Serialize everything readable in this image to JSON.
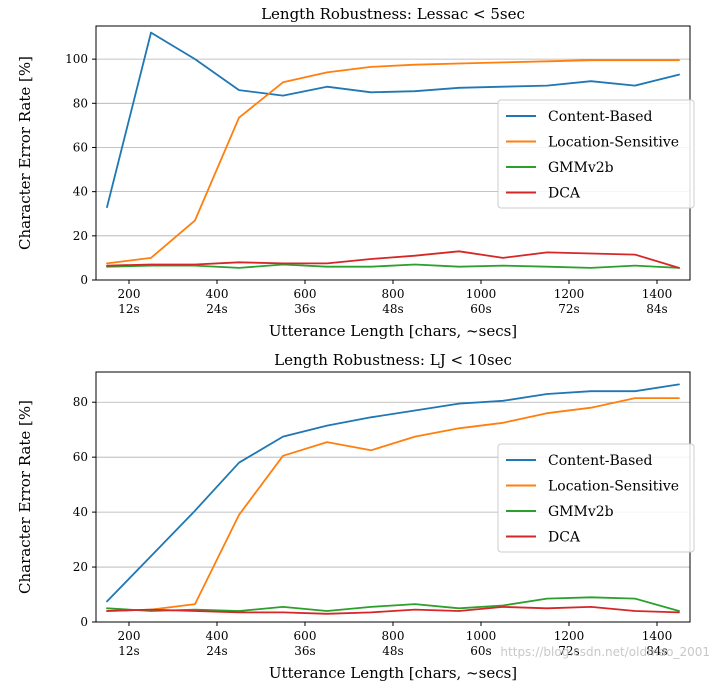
{
  "colors": {
    "Content-Based": "#1f77b4",
    "Location-Sensitive": "#ff7f0e",
    "GMMv2b": "#2ca02c",
    "DCA": "#d62728"
  },
  "watermark": "https://blog.csdn.net/oldmao_2001",
  "chart_data": [
    {
      "type": "line",
      "title": "Length Robustness: Lessac < 5sec",
      "xlabel": "Utterance Length [chars, ~secs]",
      "ylabel": "Character Error Rate [%]",
      "xlim": [
        125,
        1475
      ],
      "ylim": [
        0,
        115
      ],
      "yticks": [
        0,
        20,
        40,
        60,
        80,
        100
      ],
      "xticks": [
        {
          "value": 200,
          "label": "200",
          "sublabel": "12s"
        },
        {
          "value": 400,
          "label": "400",
          "sublabel": "24s"
        },
        {
          "value": 600,
          "label": "600",
          "sublabel": "36s"
        },
        {
          "value": 800,
          "label": "800",
          "sublabel": "48s"
        },
        {
          "value": 1000,
          "label": "1000",
          "sublabel": "60s"
        },
        {
          "value": 1200,
          "label": "1200",
          "sublabel": "72s"
        },
        {
          "value": 1400,
          "label": "1400",
          "sublabel": "84s"
        }
      ],
      "grid": "y",
      "legend": "center-right",
      "x": [
        150,
        250,
        350,
        450,
        550,
        650,
        750,
        850,
        950,
        1050,
        1150,
        1250,
        1350,
        1450
      ],
      "series": [
        {
          "name": "Content-Based",
          "values": [
            33,
            112,
            100,
            86,
            83.5,
            87.5,
            85,
            85.5,
            87,
            87.5,
            88,
            90,
            88,
            93
          ]
        },
        {
          "name": "Location-Sensitive",
          "values": [
            7.5,
            10,
            27,
            73.5,
            89.5,
            94,
            96.5,
            97.5,
            98,
            98.5,
            99,
            99.5,
            99.5,
            99.5
          ]
        },
        {
          "name": "GMMv2b",
          "values": [
            6,
            6.5,
            6.5,
            5.5,
            7,
            6,
            6,
            7,
            6,
            6.5,
            6,
            5.5,
            6.5,
            5.5
          ]
        },
        {
          "name": "DCA",
          "values": [
            6.5,
            7,
            7,
            8,
            7.5,
            7.5,
            9.5,
            11,
            13,
            10,
            12.5,
            12,
            11.5,
            5.5
          ]
        }
      ]
    },
    {
      "type": "line",
      "title": "Length Robustness: LJ < 10sec",
      "xlabel": "Utterance Length [chars, ~secs]",
      "ylabel": "Character Error Rate [%]",
      "xlim": [
        125,
        1475
      ],
      "ylim": [
        0,
        91
      ],
      "yticks": [
        0,
        20,
        40,
        60,
        80
      ],
      "xticks": [
        {
          "value": 200,
          "label": "200",
          "sublabel": "12s"
        },
        {
          "value": 400,
          "label": "400",
          "sublabel": "24s"
        },
        {
          "value": 600,
          "label": "600",
          "sublabel": "36s"
        },
        {
          "value": 800,
          "label": "800",
          "sublabel": "48s"
        },
        {
          "value": 1000,
          "label": "1000",
          "sublabel": "60s"
        },
        {
          "value": 1200,
          "label": "1200",
          "sublabel": "72s"
        },
        {
          "value": 1400,
          "label": "1400",
          "sublabel": "84s"
        }
      ],
      "grid": "y",
      "legend": "center-right",
      "x": [
        150,
        250,
        350,
        450,
        550,
        650,
        750,
        850,
        950,
        1050,
        1150,
        1250,
        1350,
        1450
      ],
      "series": [
        {
          "name": "Content-Based",
          "values": [
            7.5,
            24,
            40.5,
            58,
            67.5,
            71.5,
            74.5,
            77,
            79.5,
            80.5,
            83,
            84,
            84,
            86.5
          ]
        },
        {
          "name": "Location-Sensitive",
          "values": [
            4,
            4.5,
            6.5,
            39,
            60.5,
            65.5,
            62.5,
            67.5,
            70.5,
            72.5,
            76,
            78,
            81.5,
            81.5
          ]
        },
        {
          "name": "GMMv2b",
          "values": [
            5,
            4,
            4.5,
            4,
            5.5,
            4,
            5.5,
            6.5,
            5,
            6,
            8.5,
            9,
            8.5,
            4
          ]
        },
        {
          "name": "DCA",
          "values": [
            4,
            4.5,
            4,
            3.5,
            3.5,
            3,
            3.5,
            4.5,
            4,
            5.5,
            5,
            5.5,
            4,
            3.5
          ]
        }
      ]
    }
  ]
}
